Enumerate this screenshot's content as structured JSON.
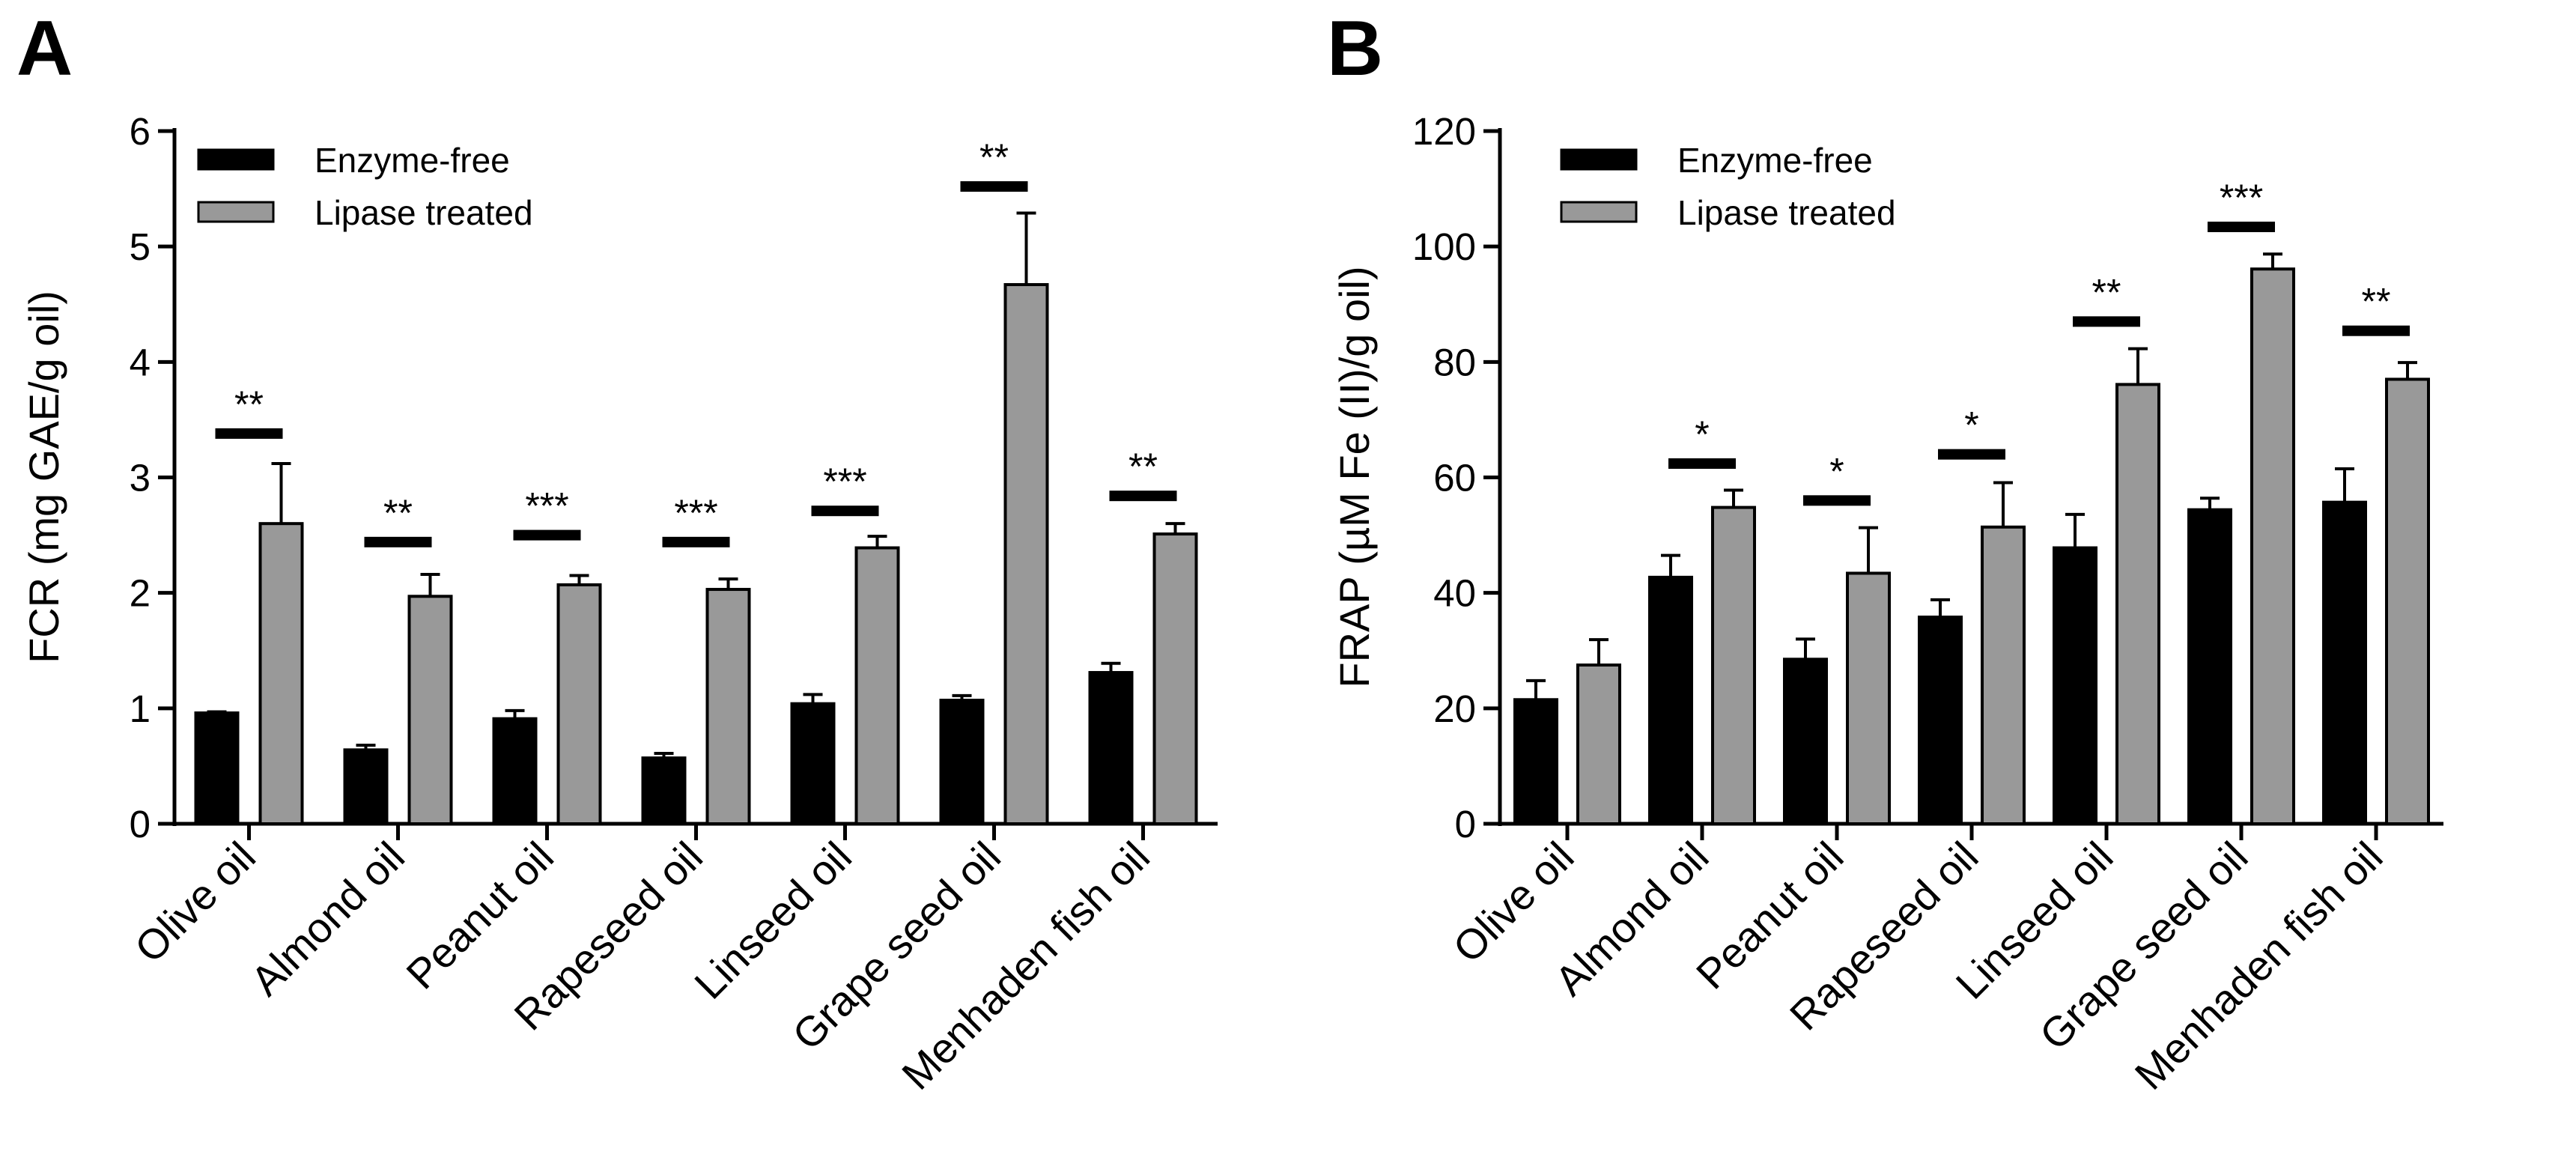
{
  "chart_data": [
    {
      "type": "bar",
      "panel": "A",
      "title": "",
      "xlabel": "",
      "ylabel": "FCR (mg GAE/g oil)",
      "ylim": [
        0,
        6
      ],
      "yticks": [
        0,
        1,
        2,
        3,
        4,
        5,
        6
      ],
      "legend_placement": "top-left",
      "categories": [
        "Olive oil",
        "Almond oil",
        "Peanut oil",
        "Rapeseed oil",
        "Linseed oil",
        "Grape seed oil",
        "Menhaden fish oil"
      ],
      "series": [
        {
          "name": "Enzyme-free",
          "color": "#000000",
          "values": [
            0.96,
            0.64,
            0.91,
            0.57,
            1.04,
            1.07,
            1.31
          ],
          "errors": [
            0.01,
            0.04,
            0.07,
            0.04,
            0.08,
            0.04,
            0.08
          ]
        },
        {
          "name": "Lipase treated",
          "color": "#999999",
          "values": [
            2.6,
            1.97,
            2.07,
            2.03,
            2.39,
            4.67,
            2.51
          ],
          "errors": [
            0.52,
            0.19,
            0.08,
            0.09,
            0.1,
            0.62,
            0.09
          ]
        }
      ],
      "significance": [
        {
          "category": "Olive oil",
          "label": "**",
          "y": 3.38
        },
        {
          "category": "Almond oil",
          "label": "**",
          "y": 2.44
        },
        {
          "category": "Peanut oil",
          "label": "***",
          "y": 2.5
        },
        {
          "category": "Rapeseed oil",
          "label": "***",
          "y": 2.44
        },
        {
          "category": "Linseed oil",
          "label": "***",
          "y": 2.71
        },
        {
          "category": "Grape seed oil",
          "label": "**",
          "y": 5.52
        },
        {
          "category": "Menhaden fish oil",
          "label": "**",
          "y": 2.84
        }
      ]
    },
    {
      "type": "bar",
      "panel": "B",
      "title": "",
      "xlabel": "",
      "ylabel": "FRAP (µM Fe (II)/g oil)",
      "ylim": [
        0,
        120
      ],
      "yticks": [
        0,
        20,
        40,
        60,
        80,
        100,
        120
      ],
      "legend_placement": "top-left",
      "categories": [
        "Olive oil",
        "Almond oil",
        "Peanut oil",
        "Rapeseed oil",
        "Linseed oil",
        "Grape seed oil",
        "Menhaden fish oil"
      ],
      "series": [
        {
          "name": "Enzyme-free",
          "color": "#000000",
          "values": [
            21.5,
            42.7,
            28.5,
            35.8,
            47.8,
            54.4,
            55.7
          ],
          "errors": [
            3.3,
            3.8,
            3.5,
            3.0,
            5.8,
            2.0,
            5.8
          ]
        },
        {
          "name": "Lipase treated",
          "color": "#999999",
          "values": [
            27.5,
            54.8,
            43.4,
            51.4,
            76.1,
            96.1,
            77.0
          ],
          "errors": [
            4.4,
            3.0,
            7.9,
            7.7,
            6.2,
            2.6,
            2.9
          ]
        }
      ],
      "significance": [
        {
          "category": "Almond oil",
          "label": "*",
          "y": 62.4
        },
        {
          "category": "Peanut oil",
          "label": "*",
          "y": 56.0
        },
        {
          "category": "Rapeseed oil",
          "label": "*",
          "y": 64.0
        },
        {
          "category": "Linseed oil",
          "label": "**",
          "y": 87.0
        },
        {
          "category": "Grape seed oil",
          "label": "***",
          "y": 103.4
        },
        {
          "category": "Menhaden fish oil",
          "label": "**",
          "y": 85.4
        }
      ]
    }
  ]
}
